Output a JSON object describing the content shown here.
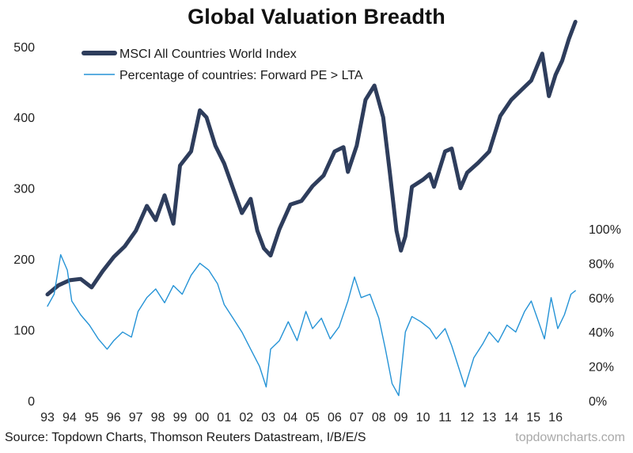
{
  "chart_data": {
    "type": "line",
    "title": "Global Valuation Breadth",
    "xlabel": "",
    "ylabel_left": "",
    "ylabel_right": "",
    "x_tick_labels": [
      "93",
      "94",
      "95",
      "96",
      "97",
      "98",
      "99",
      "00",
      "01",
      "02",
      "03",
      "04",
      "05",
      "06",
      "07",
      "08",
      "09",
      "10",
      "11",
      "12",
      "13",
      "14",
      "15",
      "16"
    ],
    "left_axis": {
      "ticks": [
        0,
        100,
        200,
        300,
        400,
        500
      ],
      "ylim": [
        0,
        540
      ]
    },
    "right_axis": {
      "ticks": [
        "0%",
        "20%",
        "40%",
        "60%",
        "80%",
        "100%"
      ],
      "tick_values": [
        0,
        20,
        40,
        60,
        80,
        100
      ],
      "ylim": [
        0,
        100
      ]
    },
    "grid": false,
    "legend_position": "top-left",
    "series": [
      {
        "name": "MSCI All Countries World Index",
        "axis": "left",
        "color": "#2e3d5c",
        "style": "thick",
        "x": [
          1993.0,
          1993.5,
          1994.0,
          1994.5,
          1995.0,
          1995.5,
          1996.0,
          1996.5,
          1997.0,
          1997.5,
          1997.9,
          1998.3,
          1998.7,
          1999.0,
          1999.5,
          1999.9,
          2000.2,
          2000.6,
          2001.0,
          2001.4,
          2001.8,
          2002.2,
          2002.5,
          2002.8,
          2003.1,
          2003.5,
          2004.0,
          2004.5,
          2005.0,
          2005.5,
          2006.0,
          2006.4,
          2006.6,
          2007.0,
          2007.4,
          2007.8,
          2008.2,
          2008.5,
          2008.8,
          2009.0,
          2009.2,
          2009.5,
          2010.0,
          2010.3,
          2010.5,
          2011.0,
          2011.3,
          2011.7,
          2012.0,
          2012.5,
          2013.0,
          2013.5,
          2014.0,
          2014.5,
          2014.9,
          2015.4,
          2015.7,
          2016.0,
          2016.3,
          2016.6,
          2016.9
        ],
        "y": [
          150,
          163,
          170,
          172,
          160,
          183,
          203,
          218,
          240,
          275,
          255,
          290,
          250,
          332,
          352,
          410,
          400,
          360,
          335,
          300,
          265,
          285,
          240,
          215,
          205,
          242,
          277,
          282,
          303,
          318,
          352,
          358,
          323,
          360,
          425,
          445,
          400,
          322,
          240,
          212,
          232,
          302,
          312,
          320,
          302,
          352,
          356,
          300,
          322,
          336,
          352,
          402,
          425,
          440,
          452,
          490,
          430,
          460,
          480,
          510,
          535
        ]
      },
      {
        "name": "Percentage of countries: Forward PE > LTA",
        "axis": "right",
        "color": "#2593d6",
        "style": "thin",
        "x": [
          1993.0,
          1993.3,
          1993.6,
          1993.9,
          1994.1,
          1994.5,
          1994.9,
          1995.3,
          1995.7,
          1996.0,
          1996.4,
          1996.8,
          1997.1,
          1997.5,
          1997.9,
          1998.3,
          1998.7,
          1999.1,
          1999.5,
          1999.9,
          2000.3,
          2000.7,
          2001.0,
          2001.4,
          2001.8,
          2002.2,
          2002.6,
          2002.9,
          2003.1,
          2003.5,
          2003.9,
          2004.3,
          2004.7,
          2005.0,
          2005.4,
          2005.8,
          2006.2,
          2006.6,
          2006.9,
          2007.2,
          2007.6,
          2008.0,
          2008.3,
          2008.6,
          2008.9,
          2009.2,
          2009.5,
          2009.9,
          2010.3,
          2010.6,
          2011.0,
          2011.3,
          2011.6,
          2011.9,
          2012.3,
          2012.7,
          2013.0,
          2013.4,
          2013.8,
          2014.2,
          2014.6,
          2014.9,
          2015.2,
          2015.5,
          2015.8,
          2016.1,
          2016.4,
          2016.7,
          2016.9
        ],
        "y": [
          55,
          62,
          85,
          76,
          58,
          50,
          44,
          36,
          30,
          35,
          40,
          37,
          52,
          60,
          65,
          57,
          67,
          62,
          73,
          80,
          76,
          68,
          56,
          48,
          40,
          30,
          20,
          8,
          30,
          35,
          46,
          35,
          52,
          42,
          48,
          36,
          43,
          58,
          72,
          60,
          62,
          48,
          30,
          10,
          3,
          40,
          49,
          46,
          42,
          36,
          42,
          32,
          20,
          8,
          25,
          33,
          40,
          34,
          44,
          40,
          52,
          58,
          47,
          36,
          60,
          42,
          50,
          62,
          64
        ]
      }
    ]
  },
  "source_note": "Source: Topdown Charts, Thomson Reuters Datastream, I/B/E/S",
  "watermark": "topdowncharts.com"
}
